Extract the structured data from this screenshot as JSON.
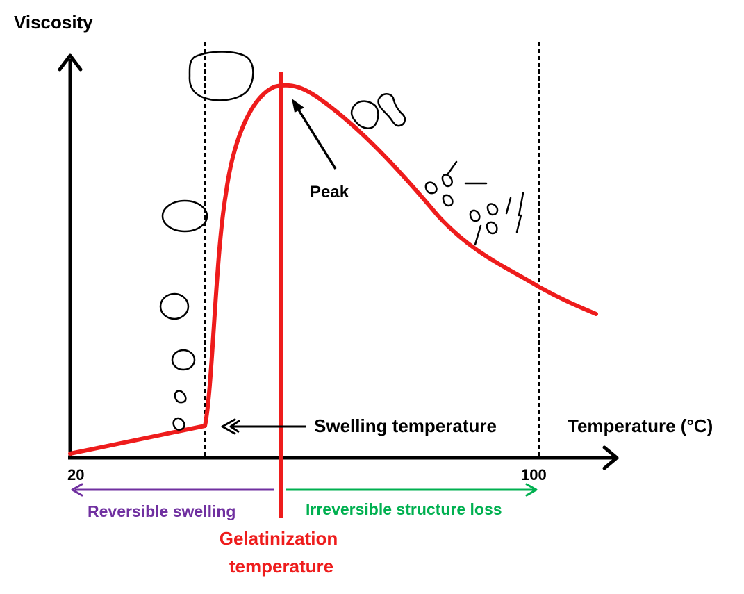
{
  "labels": {
    "y_axis": "Viscosity",
    "x_axis": "Temperature (°C)",
    "tick_start": "20",
    "tick_end": "100",
    "peak": "Peak",
    "swelling": "Swelling temperature",
    "reversible": "Reversible swelling",
    "irreversible": "Irreversible structure loss",
    "gelatinization_line1": "Gelatinization",
    "gelatinization_line2": "temperature"
  },
  "colors": {
    "curve": "#ee1c1c",
    "gelatinization": "#ee1c1c",
    "reversible": "#7030a0",
    "irreversible": "#00b050",
    "ink": "#000000"
  }
}
